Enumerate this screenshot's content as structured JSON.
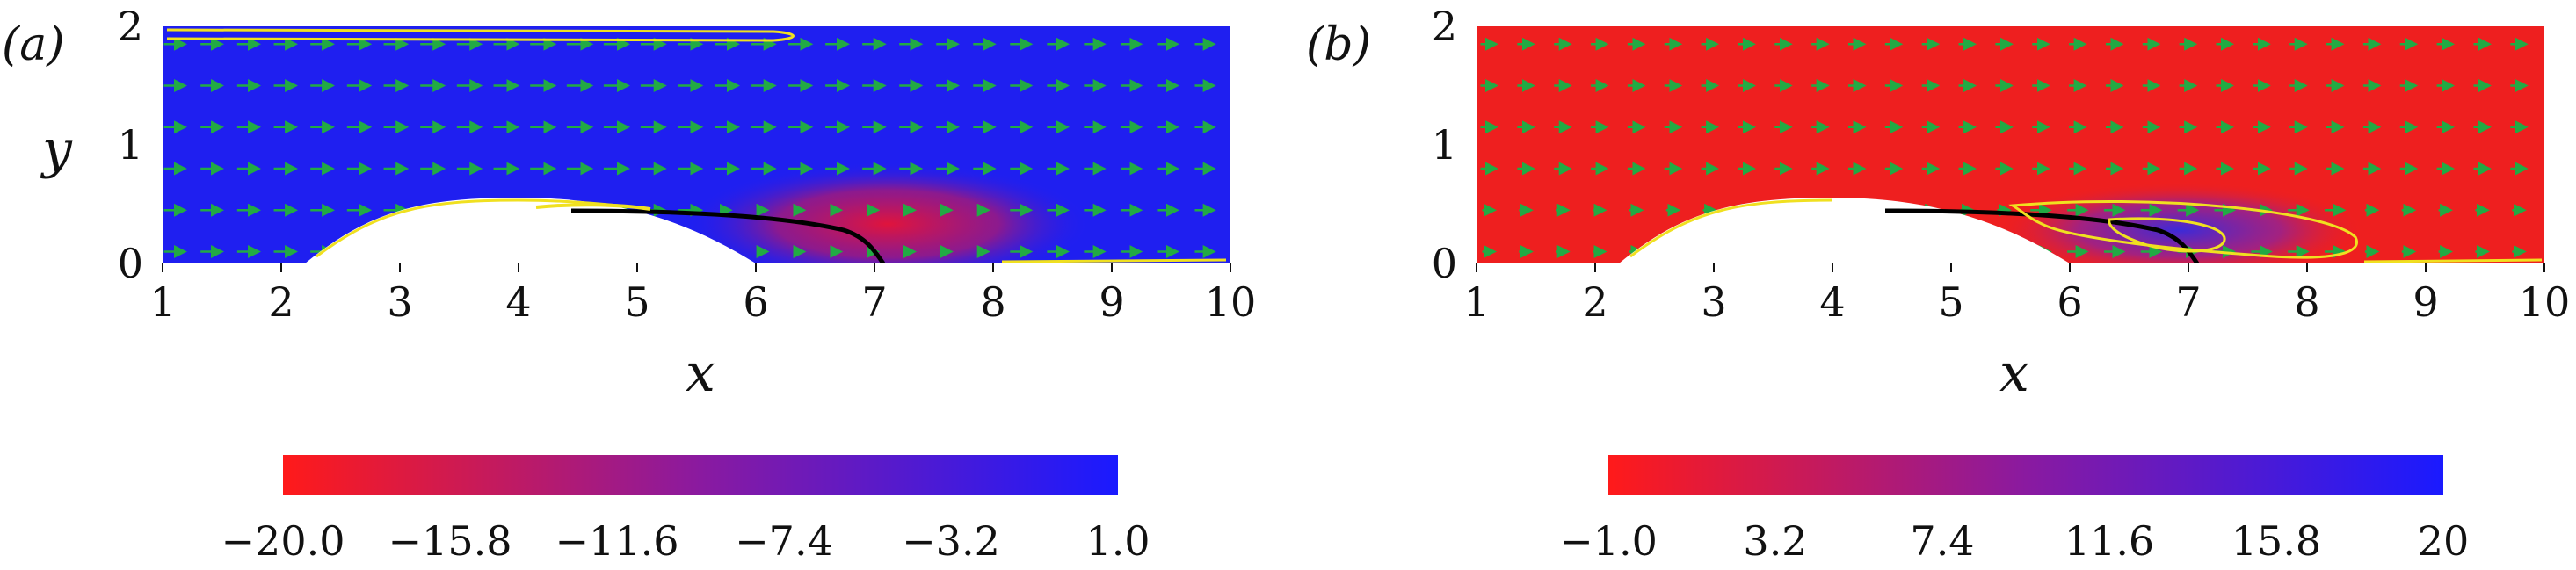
{
  "chart_data": [
    {
      "type": "heatmap",
      "panel_label": "(a)",
      "xlabel": "x",
      "ylabel": "y",
      "xlim": [
        1,
        10
      ],
      "ylim": [
        0,
        2
      ],
      "x_ticks": [
        "1",
        "2",
        "3",
        "4",
        "5",
        "6",
        "7",
        "8",
        "9",
        "10"
      ],
      "y_ticks": [
        "0",
        "1",
        "2"
      ],
      "colorbar": {
        "ticks": [
          "−20.0",
          "−15.8",
          "−11.6",
          "−7.4",
          "−3.2",
          "1.0"
        ],
        "range": [
          -20.0,
          1.0
        ],
        "low_color": "#ff1a1a",
        "high_color": "#1a1aff"
      },
      "field": {
        "background": "#1f1ff0",
        "hotspot_center": [
          6.6,
          0.35
        ],
        "hotspot_color": "#e0143c"
      },
      "obstacle": {
        "center_x": 4.0,
        "x_range": [
          2.2,
          5.8
        ],
        "peak_y": 0.5
      },
      "arrow_color": "#22aa44",
      "contour_color": "#f0e020",
      "streamline_color": "#000000"
    },
    {
      "type": "heatmap",
      "panel_label": "(b)",
      "xlabel": "x",
      "ylabel": "",
      "xlim": [
        1,
        10
      ],
      "ylim": [
        0,
        2
      ],
      "x_ticks": [
        "1",
        "2",
        "3",
        "4",
        "5",
        "6",
        "7",
        "8",
        "9",
        "10"
      ],
      "y_ticks": [
        "0",
        "1",
        "2"
      ],
      "colorbar": {
        "ticks": [
          "−1.0",
          "3.2",
          "7.4",
          "11.6",
          "15.8",
          "20"
        ],
        "range": [
          -1.0,
          20.0
        ],
        "low_color": "#ff1a1a",
        "high_color": "#1a1aff"
      },
      "field": {
        "background": "#ee1f1f",
        "hotspot_center": [
          6.8,
          0.4
        ],
        "hotspot_color": "#3c2ad8"
      },
      "obstacle": {
        "center_x": 4.0,
        "x_range": [
          2.2,
          5.8
        ],
        "peak_y": 0.5
      },
      "arrow_color": "#22aa44",
      "contour_color": "#f0e020",
      "streamline_color": "#000000"
    }
  ]
}
